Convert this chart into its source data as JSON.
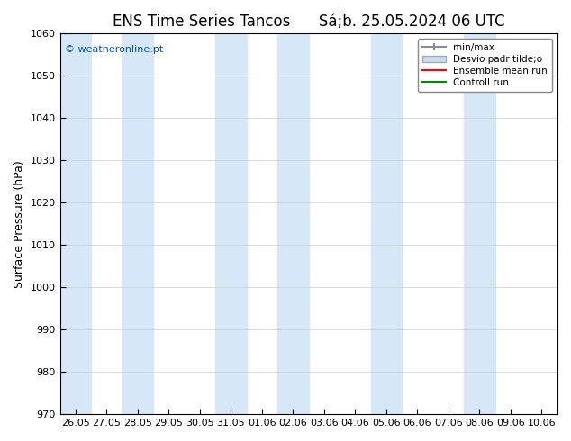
{
  "title": "ENS Time Series Tancos      Sá;b. 25.05.2024 06 UTC",
  "title_left": "ENS Time Series Tancos",
  "title_right": "Sá;b. 25.05.2024 06 UTC",
  "ylabel": "Surface Pressure (hPa)",
  "watermark": "© weatheronline.pt",
  "ylim": [
    970,
    1060
  ],
  "yticks": [
    970,
    980,
    990,
    1000,
    1010,
    1020,
    1030,
    1040,
    1050,
    1060
  ],
  "xtick_labels": [
    "26.05",
    "27.05",
    "28.05",
    "29.05",
    "30.05",
    "31.05",
    "01.06",
    "02.06",
    "03.06",
    "04.06",
    "05.06",
    "06.06",
    "07.06",
    "08.06",
    "09.06",
    "10.06"
  ],
  "shaded_band_indices": [
    0,
    2,
    5,
    7,
    10,
    13
  ],
  "band_color": "#d6e8f7",
  "background_color": "#ffffff",
  "legend_labels": [
    "min/max",
    "Desvio padr tilde;o",
    "Ensemble mean run",
    "Controll run"
  ],
  "legend_colors": [
    "#a0a0a0",
    "#c8dff0",
    "#ff0000",
    "#00aa00"
  ],
  "ensemble_mean_color": "#ff0000",
  "control_run_color": "#008800",
  "minmax_color": "#8888aa",
  "std_color": "#c8dff0",
  "title_fontsize": 12,
  "label_fontsize": 9,
  "tick_fontsize": 8
}
